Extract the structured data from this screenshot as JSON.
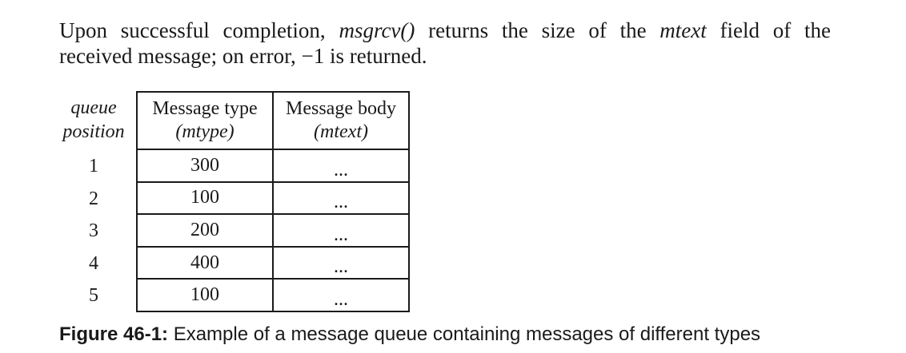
{
  "paragraph": {
    "line1_a": "Upon successful completion, ",
    "func": "msgrcv()",
    "line1_b": " returns the size of the ",
    "field": "mtext",
    "line1_c": " field of the",
    "line2": "received message; on error, −1 is returned."
  },
  "figure": {
    "queue_position_label_1": "queue",
    "queue_position_label_2": "position",
    "columns": [
      {
        "title": "Message type",
        "subtitle": "(mtype)"
      },
      {
        "title": "Message body",
        "subtitle": "(mtext)"
      }
    ],
    "rows": [
      {
        "position": "1",
        "type": "300",
        "body": "..."
      },
      {
        "position": "2",
        "type": "100",
        "body": "..."
      },
      {
        "position": "3",
        "type": "200",
        "body": "..."
      },
      {
        "position": "4",
        "type": "400",
        "body": "..."
      },
      {
        "position": "5",
        "type": "100",
        "body": "..."
      }
    ]
  },
  "caption": {
    "label": "Figure 46-1:",
    "text": " Example of a message queue containing messages of different types"
  }
}
